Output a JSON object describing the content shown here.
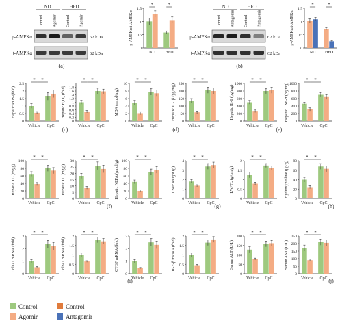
{
  "colors": {
    "control": "#9ec97f",
    "agomir": "#f4ac84",
    "antagomir": "#4a72b8",
    "error": "#333333",
    "axis": "#333333"
  },
  "blots": [
    {
      "panel_letter": "(a)",
      "groups": [
        "ND",
        "HFD"
      ],
      "lanes": [
        "Control",
        "Agomir",
        "Control",
        "Agomir"
      ],
      "rows": [
        {
          "label": "p-AMPKα",
          "kda": "62 kDa",
          "intensities": [
            0.85,
            0.95,
            0.6,
            0.8
          ]
        },
        {
          "label": "t-AMPKα",
          "kda": "62 kDa",
          "intensities": [
            0.8,
            0.8,
            0.8,
            0.8
          ]
        }
      ]
    },
    {
      "panel_letter": "(b)",
      "groups": [
        "ND",
        "HFD"
      ],
      "lanes": [
        "Control",
        "Antagomir",
        "Control",
        "Antagomir"
      ],
      "rows": [
        {
          "label": "p-AMPKα",
          "kda": "62 kDa",
          "intensities": [
            0.9,
            0.95,
            0.85,
            0.45
          ]
        },
        {
          "label": "t-AMPKα",
          "kda": "62 kDa",
          "intensities": [
            0.85,
            0.85,
            0.85,
            0.85
          ]
        }
      ]
    }
  ],
  "panel_letters": {
    "c": "(c)",
    "d": "(d)",
    "e": "(e)",
    "f": "(f)",
    "g": "(g)",
    "h": "(h)",
    "i": "(i)",
    "j": "(j)"
  },
  "legend": {
    "items": [
      {
        "label": "Control",
        "color_key": "control"
      },
      {
        "label": "Control",
        "color_key": "agomir_control"
      },
      {
        "label": "Agomir",
        "color_key": "agomir"
      },
      {
        "label": "Antagomir",
        "color_key": "antagomir"
      }
    ]
  },
  "chart_data": [
    {
      "id": "a",
      "type": "bar",
      "ylabel": "p-AMPKα/t-AMPKα",
      "categories": [
        "ND",
        "HFD"
      ],
      "ylim": [
        0,
        1.5
      ],
      "yticks": [
        0,
        0.5,
        1.0,
        1.5
      ],
      "series": [
        {
          "name": "Control",
          "color_key": "control",
          "values": [
            1.0,
            0.58
          ],
          "errors": [
            0.12,
            0.06
          ]
        },
        {
          "name": "Agomir",
          "color_key": "agomir",
          "values": [
            1.28,
            1.05
          ],
          "errors": [
            0.12,
            0.12
          ]
        }
      ],
      "sig": [
        [
          0,
          1
        ],
        [
          2,
          3
        ]
      ]
    },
    {
      "id": "b",
      "type": "bar",
      "ylabel": "p-AMPKα/t-AMPKα",
      "categories": [
        "ND",
        "HFD"
      ],
      "ylim": [
        0,
        1.5
      ],
      "yticks": [
        0,
        0.5,
        1.0,
        1.5
      ],
      "series": [
        {
          "name": "Control",
          "color_key": "agomir",
          "values": [
            1.02,
            0.72
          ],
          "errors": [
            0.08,
            0.04
          ]
        },
        {
          "name": "Antagomir",
          "color_key": "antagomir",
          "values": [
            1.08,
            0.25
          ],
          "errors": [
            0.07,
            0.02
          ]
        }
      ],
      "sig": [
        [
          0,
          1
        ],
        [
          2,
          3
        ]
      ]
    },
    {
      "id": "c1",
      "type": "bar",
      "ylabel": "Hepatic ROS (fold)",
      "categories": [
        "Vehicle",
        "CpC"
      ],
      "ylim": [
        0,
        2.5
      ],
      "yticks": [
        0,
        0.5,
        1.0,
        1.5,
        2.0,
        2.5
      ],
      "series": [
        {
          "name": "Control",
          "color_key": "control",
          "values": [
            1.0,
            1.65
          ],
          "errors": [
            0.15,
            0.25
          ]
        },
        {
          "name": "Agomir",
          "color_key": "agomir",
          "values": [
            0.55,
            1.82
          ],
          "errors": [
            0.08,
            0.25
          ]
        }
      ],
      "sig": [
        [
          0,
          1
        ],
        [
          1,
          2
        ]
      ]
    },
    {
      "id": "c2",
      "type": "bar",
      "ylabel": "Hepatic H₂O₂ (fold)",
      "categories": [
        "Vehicle",
        "CpC"
      ],
      "ylim": [
        0,
        2.0
      ],
      "yticks": [
        0,
        0.2,
        0.4,
        0.6,
        0.8,
        1.0,
        1.2,
        1.4,
        1.6,
        1.8
      ],
      "series": [
        {
          "name": "Control",
          "color_key": "control",
          "values": [
            1.0,
            1.6
          ],
          "errors": [
            0.1,
            0.15
          ]
        },
        {
          "name": "Agomir",
          "color_key": "agomir",
          "values": [
            0.5,
            1.58
          ],
          "errors": [
            0.06,
            0.12
          ]
        }
      ],
      "sig": [
        [
          0,
          1
        ],
        [
          1,
          2
        ]
      ]
    },
    {
      "id": "d1",
      "type": "bar",
      "ylabel": "MDA (nmol/mg)",
      "categories": [
        "Vehicle",
        "CpC"
      ],
      "ylim": [
        0,
        10
      ],
      "yticks": [
        0,
        2,
        4,
        6,
        8,
        10
      ],
      "series": [
        {
          "name": "Control",
          "color_key": "control",
          "values": [
            4.9,
            7.8
          ],
          "errors": [
            0.6,
            0.9
          ]
        },
        {
          "name": "Agomir",
          "color_key": "agomir",
          "values": [
            2.1,
            7.4
          ],
          "errors": [
            0.4,
            0.9
          ]
        }
      ],
      "sig": [
        [
          0,
          1
        ],
        [
          1,
          2
        ]
      ]
    },
    {
      "id": "d2",
      "type": "bar",
      "ylabel": "Hepatic IL-1β (pg/mg)",
      "categories": [
        "Vehicle",
        "CpC"
      ],
      "ylim": [
        0,
        250
      ],
      "yticks": [
        0,
        50,
        100,
        150,
        200,
        250
      ],
      "series": [
        {
          "name": "Control",
          "color_key": "control",
          "values": [
            135,
            205
          ],
          "errors": [
            15,
            20
          ]
        },
        {
          "name": "Agomir",
          "color_key": "agomir",
          "values": [
            58,
            200
          ],
          "errors": [
            8,
            20
          ]
        }
      ],
      "sig": [
        [
          0,
          1
        ],
        [
          1,
          2
        ]
      ]
    },
    {
      "id": "e1",
      "type": "bar",
      "ylabel": "Hepatic IL-6 (pg/mg)",
      "categories": [
        "Vehicle",
        "CpC"
      ],
      "ylim": [
        0,
        1000
      ],
      "yticks": [
        0,
        200,
        400,
        600,
        800,
        1000
      ],
      "series": [
        {
          "name": "Control",
          "color_key": "control",
          "values": [
            500,
            800
          ],
          "errors": [
            50,
            70
          ]
        },
        {
          "name": "Agomir",
          "color_key": "agomir",
          "values": [
            270,
            820
          ],
          "errors": [
            40,
            80
          ]
        }
      ],
      "sig": [
        [
          0,
          1
        ],
        [
          1,
          2
        ]
      ]
    },
    {
      "id": "e2",
      "type": "bar",
      "ylabel": "Hepatic TNF-α (pg/mg)",
      "categories": [
        "Vehicle",
        "CpC"
      ],
      "ylim": [
        0,
        1000
      ],
      "yticks": [
        0,
        200,
        400,
        600,
        800,
        1000
      ],
      "series": [
        {
          "name": "Control",
          "color_key": "control",
          "values": [
            460,
            700
          ],
          "errors": [
            40,
            60
          ]
        },
        {
          "name": "Agomir",
          "color_key": "agomir",
          "values": [
            310,
            640
          ],
          "errors": [
            40,
            60
          ]
        }
      ],
      "sig": [
        [
          0,
          1
        ],
        [
          1,
          2
        ]
      ]
    },
    {
      "id": "f1",
      "type": "bar",
      "ylabel": "Hepatic TG (mg/g)",
      "categories": [
        "Vehicle",
        "CpC"
      ],
      "ylim": [
        0,
        100
      ],
      "yticks": [
        0,
        20,
        40,
        60,
        80,
        100
      ],
      "series": [
        {
          "name": "Control",
          "color_key": "control",
          "values": [
            65,
            80
          ],
          "errors": [
            6,
            8
          ]
        },
        {
          "name": "Agomir",
          "color_key": "agomir",
          "values": [
            38,
            74
          ],
          "errors": [
            4,
            8
          ]
        }
      ],
      "sig": [
        [
          0,
          1
        ],
        [
          1,
          2
        ]
      ]
    },
    {
      "id": "f2",
      "type": "bar",
      "ylabel": "Hepatic TC (mg/g)",
      "categories": [
        "Vehicle",
        "CpC"
      ],
      "ylim": [
        0,
        30
      ],
      "yticks": [
        0,
        5,
        10,
        15,
        20,
        25,
        30
      ],
      "series": [
        {
          "name": "Control",
          "color_key": "control",
          "values": [
            18,
            26
          ],
          "errors": [
            2,
            3
          ]
        },
        {
          "name": "Agomir",
          "color_key": "agomir",
          "values": [
            8.5,
            23.5
          ],
          "errors": [
            1,
            3
          ]
        }
      ],
      "sig": [
        [
          0,
          1
        ],
        [
          1,
          2
        ]
      ]
    },
    {
      "id": "g0",
      "type": "bar",
      "ylabel": "Hepatic NEFA (μmol/g)",
      "categories": [
        "Vehicle",
        "CpC"
      ],
      "ylim": [
        0,
        100
      ],
      "yticks": [
        0,
        20,
        40,
        60,
        80,
        100
      ],
      "series": [
        {
          "name": "Control",
          "color_key": "control",
          "values": [
            44,
            70
          ],
          "errors": [
            5,
            8
          ]
        },
        {
          "name": "Agomir",
          "color_key": "agomir",
          "values": [
            20,
            76
          ],
          "errors": [
            3,
            9
          ]
        }
      ],
      "sig": [
        [
          0,
          1
        ],
        [
          1,
          2
        ]
      ]
    },
    {
      "id": "g1",
      "type": "bar",
      "ylabel": "Liver weight (g)",
      "categories": [
        "Vehicle",
        "CpC"
      ],
      "ylim": [
        0,
        4
      ],
      "yticks": [
        0,
        1,
        2,
        3,
        4
      ],
      "series": [
        {
          "name": "Control",
          "color_key": "control",
          "values": [
            1.8,
            3.4
          ],
          "errors": [
            0.2,
            0.3
          ]
        },
        {
          "name": "Agomir",
          "color_key": "agomir",
          "values": [
            1.35,
            3.55
          ],
          "errors": [
            0.1,
            0.3
          ]
        }
      ],
      "sig": [
        [
          0,
          1
        ],
        [
          1,
          2
        ]
      ]
    },
    {
      "id": "g2",
      "type": "bar",
      "ylabel": "LW/TL (g/cm/g)",
      "categories": [
        "Vehicle",
        "CpC"
      ],
      "ylim": [
        0,
        2.0
      ],
      "yticks": [
        0,
        0.5,
        1.0,
        1.5,
        2.0
      ],
      "series": [
        {
          "name": "Control",
          "color_key": "control",
          "values": [
            1.25,
            1.75
          ],
          "errors": [
            0.15,
            0.1
          ]
        },
        {
          "name": "Agomir",
          "color_key": "agomir",
          "values": [
            0.78,
            1.62
          ],
          "errors": [
            0.08,
            0.1
          ]
        }
      ],
      "sig": [
        [
          0,
          1
        ],
        [
          1,
          2
        ]
      ]
    },
    {
      "id": "h1",
      "type": "bar",
      "ylabel": "Hydroxyproline (μg/g)",
      "categories": [
        "Vehicle",
        "CpC"
      ],
      "ylim": [
        0,
        80
      ],
      "yticks": [
        0,
        20,
        40,
        60,
        80
      ],
      "series": [
        {
          "name": "Control",
          "color_key": "control",
          "values": [
            40,
            68
          ],
          "errors": [
            5,
            6
          ]
        },
        {
          "name": "Agomir",
          "color_key": "agomir",
          "values": [
            24,
            63
          ],
          "errors": [
            3,
            6
          ]
        }
      ],
      "sig": [
        [
          0,
          1
        ],
        [
          1,
          2
        ]
      ]
    },
    {
      "id": "i1",
      "type": "bar",
      "ylabel": "Col1a1 mRNA (fold)",
      "categories": [
        "Vehicle",
        "CpC"
      ],
      "ylim": [
        0,
        3
      ],
      "yticks": [
        0,
        1,
        2,
        3
      ],
      "series": [
        {
          "name": "Control",
          "color_key": "control",
          "values": [
            1.0,
            2.35
          ],
          "errors": [
            0.12,
            0.3
          ]
        },
        {
          "name": "Agomir",
          "color_key": "agomir",
          "values": [
            0.52,
            2.2
          ],
          "errors": [
            0.05,
            0.3
          ]
        }
      ],
      "sig": [
        [
          0,
          1
        ],
        [
          1,
          2
        ]
      ]
    },
    {
      "id": "i2",
      "type": "bar",
      "ylabel": "Col3a1 mRNA (fold)",
      "categories": [
        "Vehicle",
        "CpC"
      ],
      "ylim": [
        0,
        2.0
      ],
      "yticks": [
        0,
        0.5,
        1.0,
        1.5,
        2.0
      ],
      "series": [
        {
          "name": "Control",
          "color_key": "control",
          "values": [
            1.0,
            1.8
          ],
          "errors": [
            0.1,
            0.15
          ]
        },
        {
          "name": "Agomir",
          "color_key": "agomir",
          "values": [
            0.65,
            1.72
          ],
          "errors": [
            0.04,
            0.15
          ]
        }
      ],
      "sig": [
        [
          0,
          1
        ],
        [
          1,
          2
        ]
      ]
    },
    {
      "id": "i3",
      "type": "bar",
      "ylabel": "CTGF mRNA (fold)",
      "categories": [
        "Vehicle",
        "CpC"
      ],
      "ylim": [
        0,
        3
      ],
      "yticks": [
        0,
        1,
        2,
        3
      ],
      "series": [
        {
          "name": "Control",
          "color_key": "control",
          "values": [
            1.0,
            2.5
          ],
          "errors": [
            0.12,
            0.3
          ]
        },
        {
          "name": "Agomir",
          "color_key": "agomir",
          "values": [
            0.45,
            2.3
          ],
          "errors": [
            0.05,
            0.3
          ]
        }
      ],
      "sig": [
        [
          0,
          1
        ],
        [
          1,
          2
        ]
      ]
    },
    {
      "id": "i4",
      "type": "bar",
      "ylabel": "TGF-β mRNA (fold)",
      "categories": [
        "Vehicle",
        "CpC"
      ],
      "ylim": [
        0,
        2.0
      ],
      "yticks": [
        0,
        0.5,
        1.0,
        1.5,
        2.0
      ],
      "series": [
        {
          "name": "Control",
          "color_key": "control",
          "values": [
            1.0,
            1.65
          ],
          "errors": [
            0.1,
            0.15
          ]
        },
        {
          "name": "Agomir",
          "color_key": "agomir",
          "values": [
            0.45,
            1.82
          ],
          "errors": [
            0.04,
            0.15
          ]
        }
      ],
      "sig": [
        [
          0,
          1
        ],
        [
          1,
          2
        ]
      ]
    },
    {
      "id": "j1",
      "type": "bar",
      "ylabel": "Serum ALT (U/L)",
      "categories": [
        "Vehicle",
        "CpC"
      ],
      "ylim": [
        0,
        200
      ],
      "yticks": [
        0,
        50,
        100,
        150,
        200
      ],
      "series": [
        {
          "name": "Control",
          "color_key": "control",
          "values": [
            128,
            158
          ],
          "errors": [
            15,
            15
          ]
        },
        {
          "name": "Agomir",
          "color_key": "agomir",
          "values": [
            78,
            162
          ],
          "errors": [
            5,
            15
          ]
        }
      ],
      "sig": [
        [
          0,
          1
        ],
        [
          1,
          2
        ]
      ]
    },
    {
      "id": "j2",
      "type": "bar",
      "ylabel": "Serum AST (U/L)",
      "categories": [
        "Vehicle",
        "CpC"
      ],
      "ylim": [
        0,
        250
      ],
      "yticks": [
        0,
        50,
        100,
        150,
        200,
        250
      ],
      "series": [
        {
          "name": "Control",
          "color_key": "control",
          "values": [
            170,
            210
          ],
          "errors": [
            20,
            20
          ]
        },
        {
          "name": "Agomir",
          "color_key": "agomir",
          "values": [
            90,
            205
          ],
          "errors": [
            8,
            20
          ]
        }
      ],
      "sig": [
        [
          0,
          1
        ],
        [
          1,
          2
        ]
      ]
    }
  ]
}
